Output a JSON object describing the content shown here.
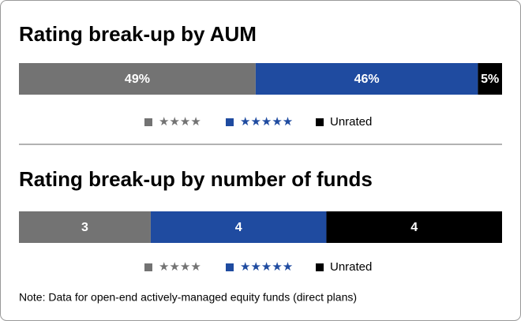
{
  "chart_data": [
    {
      "type": "stacked-bar",
      "title": "Rating break-up by AUM",
      "xlim": [
        0,
        100
      ],
      "series": [
        {
          "name": "★★★★",
          "color": "#737373",
          "values": [
            49
          ],
          "value_labels": [
            "49%"
          ]
        },
        {
          "name": "★★★★★",
          "color": "#1f4ba0",
          "values": [
            46
          ],
          "value_labels": [
            "46%"
          ]
        },
        {
          "name": "Unrated",
          "color": "#000000",
          "values": [
            5
          ],
          "value_labels": [
            "5%"
          ]
        }
      ]
    },
    {
      "type": "stacked-bar",
      "title": "Rating break-up by number of funds",
      "xlim": [
        0,
        11
      ],
      "series": [
        {
          "name": "★★★★",
          "color": "#737373",
          "values": [
            3
          ]
        },
        {
          "name": "★★★★★",
          "color": "#1f4ba0",
          "values": [
            4
          ]
        },
        {
          "name": "Unrated",
          "color": "#000000",
          "values": [
            4
          ]
        }
      ]
    }
  ],
  "note": "Note: Data for open-end actively-managed equity funds (direct plans)"
}
